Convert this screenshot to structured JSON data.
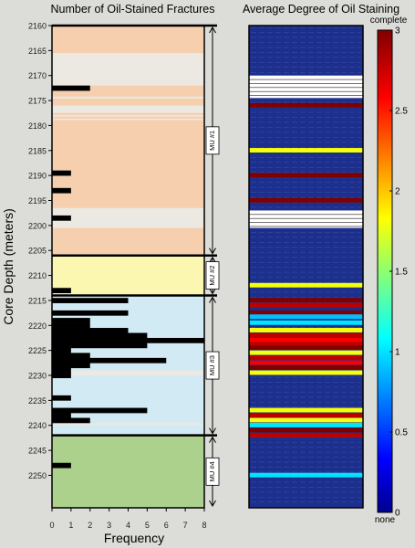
{
  "chart_data": [
    {
      "type": "bar",
      "orientation": "horizontal",
      "title": "Number of Oil-Stained Fractures",
      "ylabel": "Core Depth (meters)",
      "xlabel": "Frequency",
      "xlim": [
        0,
        8
      ],
      "x_ticks": [
        "0",
        "1",
        "2",
        "3",
        "4",
        "5",
        "6",
        "7",
        "8"
      ],
      "ylim": [
        2160,
        2260
      ],
      "y_ticks": [
        "2160",
        "2165",
        "2170",
        "2175",
        "2180",
        "2185",
        "2190",
        "2195",
        "2200",
        "2205",
        "2210",
        "2215",
        "2220",
        "2225",
        "2230",
        "2235",
        "2240",
        "2245",
        "2250"
      ],
      "y_axis_reversed": true,
      "units": [
        {
          "label": "MU #1",
          "top": 2160,
          "bottom": 2206,
          "color": "#f5cfae"
        },
        {
          "label": "MU #2",
          "top": 2206,
          "bottom": 2214,
          "color": "#fbf6b0"
        },
        {
          "label": "MU #3",
          "top": 2214,
          "bottom": 2242,
          "color": "#d2eaf4"
        },
        {
          "label": "MU #4",
          "top": 2242,
          "bottom": 2256.5,
          "color": "#abd18c"
        }
      ],
      "gaps": [
        [
          2165.5,
          2171.5
        ],
        [
          2171.5,
          2172
        ],
        [
          2174.2,
          2174.6
        ],
        [
          2176,
          2177.5
        ],
        [
          2177.9,
          2178.2
        ],
        [
          2178.6,
          2178.9
        ],
        [
          2196.5,
          2200.5
        ],
        [
          2229,
          2230
        ],
        [
          2239.6,
          2240
        ]
      ],
      "bars": [
        {
          "depth": 2172.5,
          "value": 2
        },
        {
          "depth": 2189.5,
          "value": 1
        },
        {
          "depth": 2193,
          "value": 1
        },
        {
          "depth": 2198.5,
          "value": 1
        },
        {
          "depth": 2213,
          "value": 1
        },
        {
          "depth": 2215,
          "value": 4
        },
        {
          "depth": 2217.5,
          "value": 4
        },
        {
          "depth": 2219,
          "value": 2
        },
        {
          "depth": 2220,
          "value": 2
        },
        {
          "depth": 2221,
          "value": 4
        },
        {
          "depth": 2222,
          "value": 5
        },
        {
          "depth": 2223,
          "value": 8
        },
        {
          "depth": 2224,
          "value": 5
        },
        {
          "depth": 2225,
          "value": 1
        },
        {
          "depth": 2226,
          "value": 2
        },
        {
          "depth": 2227,
          "value": 6
        },
        {
          "depth": 2228,
          "value": 2
        },
        {
          "depth": 2229,
          "value": 1
        },
        {
          "depth": 2230,
          "value": 1
        },
        {
          "depth": 2234.5,
          "value": 1
        },
        {
          "depth": 2237,
          "value": 5
        },
        {
          "depth": 2238,
          "value": 1
        },
        {
          "depth": 2239,
          "value": 2
        },
        {
          "depth": 2248,
          "value": 1
        }
      ]
    },
    {
      "type": "heatmap",
      "title": "Average Degree of Oil Staining",
      "colorbar_range": [
        0,
        3
      ],
      "colorbar_ticks": [
        "0",
        "0.5",
        "1",
        "1.5",
        "2",
        "2.5",
        "3"
      ],
      "colorbar_top_label": "complete",
      "colorbar_bottom_label": "none",
      "white_gaps": [
        [
          2170,
          2174.5
        ],
        [
          2197,
          2200.5
        ]
      ],
      "cells": [
        {
          "depth": 2176,
          "value": 3
        },
        {
          "depth": 2185,
          "value": 1.8
        },
        {
          "depth": 2190,
          "value": 3
        },
        {
          "depth": 2195,
          "value": 3
        },
        {
          "depth": 2212,
          "value": 1.8
        },
        {
          "depth": 2215,
          "value": 3
        },
        {
          "depth": 2216,
          "value": 2.8
        },
        {
          "depth": 2217.5,
          "value": 3
        },
        {
          "depth": 2218.3,
          "value": 0.9
        },
        {
          "depth": 2219.5,
          "value": 1
        },
        {
          "depth": 2221,
          "value": 1.8
        },
        {
          "depth": 2222,
          "value": 2.8
        },
        {
          "depth": 2223,
          "value": 2.6
        },
        {
          "depth": 2223.8,
          "value": 2.8
        },
        {
          "depth": 2224.5,
          "value": 3
        },
        {
          "depth": 2225.5,
          "value": 1.8
        },
        {
          "depth": 2226.5,
          "value": 2.8
        },
        {
          "depth": 2227.5,
          "value": 2.6
        },
        {
          "depth": 2228.5,
          "value": 3
        },
        {
          "depth": 2229.5,
          "value": 1.8
        },
        {
          "depth": 2237,
          "value": 1.8
        },
        {
          "depth": 2238,
          "value": 2.8
        },
        {
          "depth": 2239,
          "value": 1.8
        },
        {
          "depth": 2240,
          "value": 1
        },
        {
          "depth": 2241,
          "value": 3
        },
        {
          "depth": 2242,
          "value": 2.8
        },
        {
          "depth": 2250,
          "value": 1
        }
      ]
    }
  ]
}
